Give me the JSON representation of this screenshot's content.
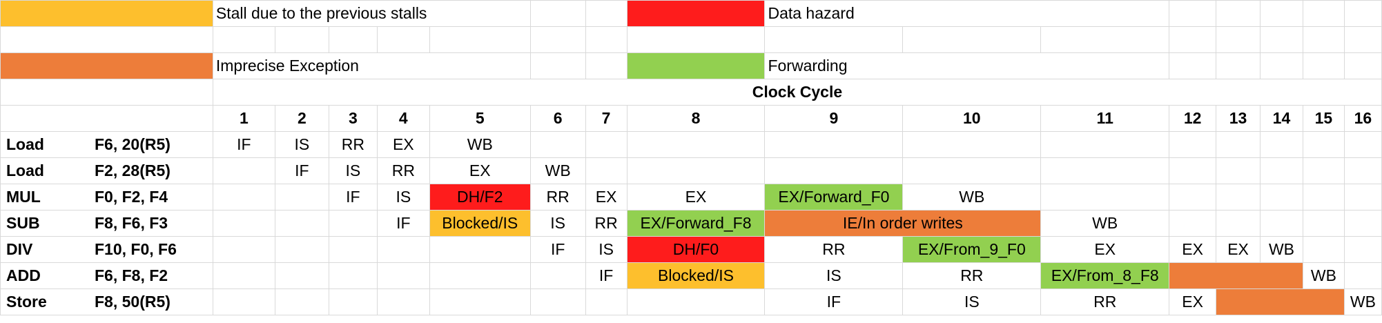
{
  "legend": {
    "stall_prev": "Stall due to the previous stalls",
    "data_hazard": "Data hazard",
    "imprecise_exception": "Imprecise Exception",
    "forwarding": "Forwarding"
  },
  "colors": {
    "stall": "#fdbf2d",
    "data_hazard": "#fe1c1c",
    "imprecise_exception": "#ed7d3a",
    "forwarding": "#92d050"
  },
  "header": {
    "title": "Clock Cycle",
    "cycles": [
      "1",
      "2",
      "3",
      "4",
      "5",
      "6",
      "7",
      "8",
      "9",
      "10",
      "11",
      "12",
      "13",
      "14",
      "15",
      "16"
    ]
  },
  "rows": [
    {
      "op": "Load",
      "args": "F6, 20(R5)"
    },
    {
      "op": "Load",
      "args": "F2, 28(R5)"
    },
    {
      "op": "MUL",
      "args": "F0, F2, F4"
    },
    {
      "op": "SUB",
      "args": "F8, F6, F3"
    },
    {
      "op": "DIV",
      "args": "F10, F0, F6"
    },
    {
      "op": "ADD",
      "args": "F6, F8, F2"
    },
    {
      "op": "Store",
      "args": "F8, 50(R5)"
    }
  ],
  "cells": {
    "r0": {
      "c1": "IF",
      "c2": "IS",
      "c3": "RR",
      "c4": "EX",
      "c5": "WB"
    },
    "r1": {
      "c2": "IF",
      "c3": "IS",
      "c4": "RR",
      "c5": "EX",
      "c6": "WB"
    },
    "r2": {
      "c3": "IF",
      "c4": "IS",
      "c5": "DH/F2",
      "c6": "RR",
      "c7": "EX",
      "c8": "EX",
      "c9": "EX/Forward_F0",
      "c10": "WB"
    },
    "r3": {
      "c4": "IF",
      "c5": "Blocked/IS",
      "c6": "IS",
      "c7": "RR",
      "c8": "EX/Forward_F8",
      "c9_10": "IE/In order writes",
      "c11": "WB"
    },
    "r4": {
      "c6": "IF",
      "c7": "IS",
      "c8": "DH/F0",
      "c9": "RR",
      "c10": "EX/From_9_F0",
      "c11": "EX",
      "c12": "EX",
      "c13": "EX",
      "c14": "WB"
    },
    "r5": {
      "c7": "IF",
      "c8": "Blocked/IS",
      "c9": "IS",
      "c10": "RR",
      "c11": "EX/From_8_F8",
      "c15": "WB"
    },
    "r6": {
      "c9": "IF",
      "c10": "IS",
      "c11": "RR",
      "c12": "EX",
      "c16": "WB"
    }
  }
}
